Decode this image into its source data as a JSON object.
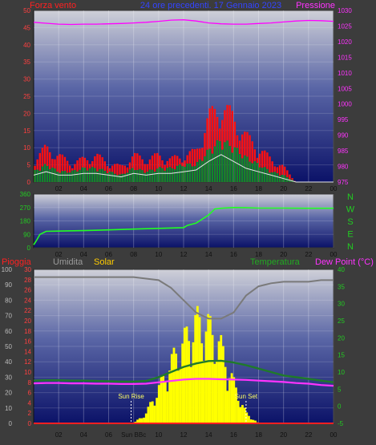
{
  "header": {
    "left": "Forza vento",
    "center": "24 ore precedenti. 17 Gennaio 2023",
    "right": "Pressione"
  },
  "colors": {
    "background": "#3c3c3c",
    "plot_top": "#cfd0d8",
    "plot_bottom": "#0b1268",
    "wind_gust": "#ff1010",
    "wind_avg": "#0f8a2a",
    "wind_line": "#e6e6e6",
    "pressure": "#ff00ff",
    "direction": "#22ff22",
    "humidity": "#7a7a7a",
    "temperature": "#1f7a2a",
    "dew_point": "#ff33ff",
    "solar": "#ffff00",
    "rain": "#ff2020",
    "left_axis": "#ff4040",
    "grey_axis": "#bbbbbb",
    "green_axis": "#22cc22",
    "magenta_axis": "#ff33ff"
  },
  "chart_data": [
    {
      "id": "wind_pressure",
      "type": "area",
      "x_ticks": [
        "02",
        "04",
        "06",
        "08",
        "10",
        "12",
        "14",
        "16",
        "18",
        "20",
        "22",
        "00"
      ],
      "y_left_ticks": [
        "0",
        "5",
        "10",
        "15",
        "20",
        "25",
        "30",
        "35",
        "40",
        "45",
        "50"
      ],
      "y_left_range": [
        0,
        50
      ],
      "y_right_ticks": [
        "975",
        "980",
        "985",
        "990",
        "995",
        "1000",
        "1005",
        "1010",
        "1015",
        "1020",
        "1025",
        "1030"
      ],
      "y_right_range": [
        975,
        1030
      ],
      "x_hours": [
        0,
        1,
        2,
        3,
        4,
        5,
        6,
        7,
        8,
        9,
        10,
        11,
        12,
        13,
        14,
        15,
        16,
        17,
        18,
        19,
        20,
        21,
        22,
        23,
        24
      ],
      "series": [
        {
          "key": "gust",
          "values": [
            6,
            9,
            7,
            5,
            6,
            7,
            5,
            4,
            7,
            6,
            7,
            6,
            7,
            8,
            17,
            20,
            17,
            12,
            9,
            6,
            4,
            0,
            0,
            0,
            0
          ]
        },
        {
          "key": "avg",
          "values": [
            3,
            5,
            3,
            3,
            4,
            4,
            3,
            2,
            4,
            3,
            4,
            4,
            5,
            5,
            9,
            12,
            10,
            7,
            5,
            3,
            2,
            0,
            0,
            0,
            0
          ]
        },
        {
          "key": "wind",
          "values": [
            2,
            3,
            2,
            2,
            2.5,
            2.5,
            2,
            1.5,
            2.5,
            2,
            2.5,
            2.5,
            3,
            3.5,
            6,
            8,
            6,
            4,
            3,
            2,
            1,
            0,
            0,
            0,
            0
          ]
        },
        {
          "key": "pressure",
          "values": [
            1026.2,
            1025.9,
            1025.6,
            1025.5,
            1025.6,
            1025.6,
            1025.7,
            1025.8,
            1026.0,
            1026.2,
            1026.5,
            1026.9,
            1027.0,
            1026.6,
            1026.0,
            1025.7,
            1025.6,
            1025.6,
            1025.8,
            1026.0,
            1026.3,
            1026.6,
            1026.8,
            1026.7,
            1026.5
          ]
        }
      ]
    },
    {
      "id": "wind_direction",
      "type": "line",
      "x_ticks": [
        "02",
        "04",
        "06",
        "08",
        "10",
        "12",
        "14",
        "16",
        "18",
        "20",
        "22",
        "00"
      ],
      "y_left_ticks": [
        "0",
        "90",
        "180",
        "270",
        "360"
      ],
      "y_left_range": [
        0,
        360
      ],
      "y_right_ticks": [
        "N",
        "W",
        "S",
        "E",
        "N"
      ],
      "x_hours": [
        0,
        0.2,
        0.5,
        1,
        2,
        4,
        6,
        8,
        10,
        12,
        12.3,
        13,
        14,
        14.5,
        15,
        16,
        17,
        18,
        20,
        22,
        24
      ],
      "series": [
        {
          "key": "direction",
          "values": [
            20,
            45,
            90,
            110,
            112,
            115,
            120,
            125,
            130,
            135,
            150,
            165,
            220,
            260,
            265,
            270,
            268,
            266,
            266,
            265,
            265
          ]
        }
      ]
    },
    {
      "id": "weather_combined",
      "type": "line",
      "x_ticks": [
        "02",
        "04",
        "06",
        "Sun BBc",
        "10",
        "12",
        "14",
        "16",
        "18",
        "20",
        "22",
        "00"
      ],
      "left_headers": [
        "Pioggia",
        "Umidita",
        "Solar"
      ],
      "right_headers": [
        "Temperatura",
        "Dew Point (°C)"
      ],
      "y_humidity_ticks": [
        "0",
        "10",
        "20",
        "30",
        "40",
        "50",
        "60",
        "70",
        "80",
        "90",
        "100"
      ],
      "y_humidity_range": [
        0,
        100
      ],
      "y_rain_ticks": [
        "0",
        "2",
        "4",
        "6",
        "8",
        "10",
        "12",
        "14",
        "16",
        "18",
        "20",
        "22",
        "24",
        "26",
        "28",
        "30"
      ],
      "y_rain_range": [
        0,
        30
      ],
      "y_temp_ticks": [
        "-5",
        "0",
        "5",
        "10",
        "15",
        "20",
        "25",
        "30",
        "35",
        "40"
      ],
      "y_temp_range": [
        -5,
        40
      ],
      "annotations": [
        "Sun Rise",
        "Sun Set"
      ],
      "sunrise_hour": 7.8,
      "sunset_hour": 17.0,
      "x_hours": [
        0,
        1,
        2,
        3,
        4,
        5,
        6,
        7,
        8,
        9,
        10,
        11,
        12,
        13,
        14,
        15,
        16,
        17,
        18,
        19,
        20,
        21,
        22,
        23,
        24
      ],
      "series": [
        {
          "key": "humidity",
          "values": [
            95,
            95,
            95,
            95,
            95,
            95,
            95,
            95,
            95,
            94,
            93,
            88,
            80,
            72,
            68,
            68,
            72,
            83,
            89,
            91,
            92,
            92,
            92,
            93,
            93
          ]
        },
        {
          "key": "temperature",
          "values": [
            7.5,
            7.6,
            7.6,
            7.5,
            7.5,
            7.4,
            7.3,
            7.2,
            7.2,
            7.4,
            8.5,
            10,
            11.5,
            12.5,
            13.2,
            13.3,
            12.8,
            12,
            11,
            10,
            9,
            8.5,
            8,
            7.5,
            7
          ]
        },
        {
          "key": "dew_point",
          "values": [
            6.7,
            6.8,
            6.8,
            6.7,
            6.7,
            6.6,
            6.6,
            6.5,
            6.5,
            6.6,
            7,
            7.4,
            7.8,
            8,
            8,
            7.9,
            7.8,
            7.7,
            7.5,
            7.3,
            7.1,
            6.8,
            6.6,
            6.2,
            6
          ]
        },
        {
          "key": "solar",
          "values": [
            0,
            0,
            0,
            0,
            0,
            0,
            0,
            0,
            0,
            2,
            7,
            12,
            16,
            20,
            19,
            15,
            8,
            2,
            0,
            0,
            0,
            0,
            0,
            0,
            0
          ]
        },
        {
          "key": "rain",
          "values": [
            0,
            0,
            0,
            0,
            0,
            0,
            0,
            0,
            0,
            0,
            0,
            0,
            0,
            0,
            0,
            0,
            0,
            0,
            0,
            0,
            0,
            0,
            0,
            0,
            0
          ]
        }
      ]
    }
  ]
}
